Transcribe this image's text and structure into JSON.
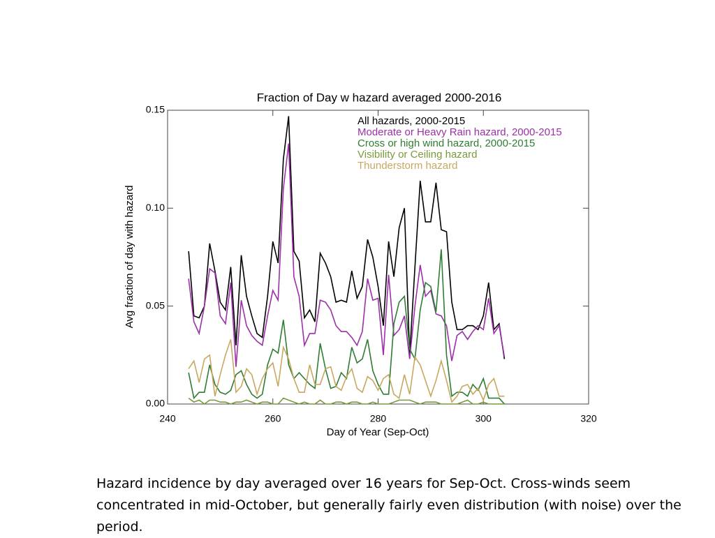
{
  "chart_data": {
    "type": "line",
    "title": "Fraction of Day w hazard averaged 2000-2016",
    "xlabel": "Day of Year (Sep-Oct)",
    "ylabel": "Avg fraction of day with hazard",
    "xlim": [
      240,
      320
    ],
    "ylim": [
      0,
      0.15
    ],
    "xticks": [
      240,
      260,
      280,
      300,
      320
    ],
    "yticks": [
      {
        "value": 0,
        "label": "0.00"
      },
      {
        "value": 0.05,
        "label": "0.05"
      },
      {
        "value": 0.1,
        "label": "0.10"
      },
      {
        "value": 0.15,
        "label": "0.15"
      }
    ],
    "legend": "upper right",
    "x": [
      244,
      245,
      246,
      247,
      248,
      249,
      250,
      251,
      252,
      253,
      254,
      255,
      256,
      257,
      258,
      259,
      260,
      261,
      262,
      263,
      264,
      265,
      266,
      267,
      268,
      269,
      270,
      271,
      272,
      273,
      274,
      275,
      276,
      277,
      278,
      279,
      280,
      281,
      282,
      283,
      284,
      285,
      286,
      287,
      288,
      289,
      290,
      291,
      292,
      293,
      294,
      295,
      296,
      297,
      298,
      299,
      300,
      301,
      302,
      303,
      304
    ],
    "series": [
      {
        "name": "All hazards, 2000-2015",
        "color": "#000000",
        "values": [
          0.078,
          0.045,
          0.044,
          0.05,
          0.082,
          0.068,
          0.052,
          0.048,
          0.07,
          0.03,
          0.076,
          0.055,
          0.045,
          0.036,
          0.034,
          0.055,
          0.083,
          0.072,
          0.125,
          0.147,
          0.078,
          0.073,
          0.044,
          0.048,
          0.042,
          0.077,
          0.072,
          0.065,
          0.052,
          0.053,
          0.052,
          0.068,
          0.054,
          0.06,
          0.084,
          0.075,
          0.06,
          0.04,
          0.083,
          0.065,
          0.09,
          0.1,
          0.025,
          0.07,
          0.114,
          0.093,
          0.093,
          0.113,
          0.089,
          0.088,
          0.052,
          0.038,
          0.038,
          0.04,
          0.04,
          0.038,
          0.045,
          0.062,
          0.038,
          0.041,
          0.023
        ]
      },
      {
        "name": "Moderate or Heavy Rain hazard, 2000-2015",
        "color": "#9b30a8",
        "values": [
          0.064,
          0.042,
          0.036,
          0.05,
          0.069,
          0.067,
          0.045,
          0.041,
          0.062,
          0.019,
          0.053,
          0.04,
          0.035,
          0.032,
          0.03,
          0.045,
          0.058,
          0.053,
          0.11,
          0.133,
          0.065,
          0.055,
          0.03,
          0.036,
          0.036,
          0.053,
          0.052,
          0.048,
          0.04,
          0.037,
          0.037,
          0.034,
          0.03,
          0.037,
          0.064,
          0.053,
          0.054,
          0.025,
          0.066,
          0.035,
          0.038,
          0.045,
          0.023,
          0.05,
          0.071,
          0.055,
          0.058,
          0.046,
          0.045,
          0.04,
          0.022,
          0.035,
          0.037,
          0.033,
          0.037,
          0.04,
          0.038,
          0.054,
          0.036,
          0.04,
          0.024
        ]
      },
      {
        "name": "Cross or high wind hazard, 2000-2015",
        "color": "#2e7d32",
        "values": [
          0.016,
          0.003,
          0.006,
          0.006,
          0.02,
          0.01,
          0.006,
          0.005,
          0.007,
          0.015,
          0.017,
          0.01,
          0.005,
          0.003,
          0.005,
          0.02,
          0.028,
          0.026,
          0.043,
          0.02,
          0.013,
          0.016,
          0.013,
          0.01,
          0.008,
          0.031,
          0.018,
          0.008,
          0.009,
          0.016,
          0.013,
          0.029,
          0.021,
          0.023,
          0.033,
          0.017,
          0.01,
          0.005,
          0.005,
          0.041,
          0.052,
          0.055,
          0.028,
          0.023,
          0.048,
          0.062,
          0.06,
          0.047,
          0.079,
          0.025,
          0.004,
          0.006,
          0.006,
          0.004,
          0.01,
          0.007,
          0.013,
          0.003,
          0.003,
          0.003,
          0.0
        ]
      },
      {
        "name": "Visibility or Ceiling hazard",
        "color": "#7a9a3a",
        "values": [
          0.003,
          0.001,
          0.002,
          0.0,
          0.002,
          0.002,
          0.001,
          0.001,
          0.0,
          0.001,
          0.001,
          0.002,
          0.001,
          0.0,
          0.001,
          0.001,
          0.0,
          0.0,
          0.003,
          0.002,
          0.001,
          0.0,
          0.001,
          0.0,
          0.0,
          0.002,
          0.0,
          0.0,
          0.001,
          0.001,
          0.0,
          0.001,
          0.001,
          0.0,
          0.0,
          0.001,
          0.0,
          0.0,
          0.0,
          0.001,
          0.002,
          0.002,
          0.002,
          0.001,
          0.0,
          0.001,
          0.001,
          0.001,
          0.0,
          0.0,
          0.0,
          0.0,
          0.001,
          0.002,
          0.0,
          0.0,
          0.001,
          0.0,
          0.0,
          0.0,
          0.0
        ]
      },
      {
        "name": "Thunderstorm hazard",
        "color": "#c8a860",
        "values": [
          0.018,
          0.022,
          0.011,
          0.023,
          0.025,
          0.004,
          0.015,
          0.025,
          0.033,
          0.006,
          0.009,
          0.018,
          0.015,
          0.005,
          0.013,
          0.018,
          0.021,
          0.009,
          0.029,
          0.023,
          0.013,
          0.006,
          0.006,
          0.02,
          0.01,
          0.01,
          0.018,
          0.019,
          0.009,
          0.007,
          0.014,
          0.018,
          0.008,
          0.006,
          0.014,
          0.012,
          0.007,
          0.013,
          0.015,
          0.005,
          0.003,
          0.015,
          0.005,
          0.024,
          0.02,
          0.012,
          0.004,
          0.012,
          0.022,
          0.012,
          0.001,
          0.004,
          0.009,
          0.01,
          0.005,
          0.008,
          0.002,
          0.01,
          0.013,
          0.004,
          0.004
        ]
      }
    ]
  },
  "caption": "Hazard incidence by day averaged over 16 years for Sep-Oct.  Cross-winds seem concentrated in mid-October, but generally fairly even distribution (with noise) over the period."
}
